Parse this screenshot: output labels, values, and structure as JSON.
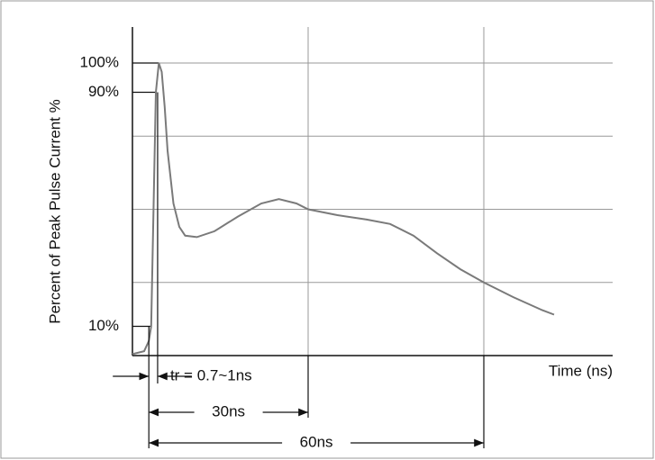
{
  "chart_data": {
    "type": "line",
    "ylabel": "Percent of Peak Pulse Current %",
    "xlabel": "Time (ns)",
    "xlim": [
      0,
      82
    ],
    "ylim": [
      0,
      100
    ],
    "yticks": [
      {
        "value": 10,
        "label": "10%"
      },
      {
        "value": 90,
        "label": "90%"
      },
      {
        "value": 100,
        "label": "100%"
      }
    ],
    "ygrid": [
      25,
      50,
      75,
      100
    ],
    "xgrid": [
      30,
      60
    ],
    "color": "#7a7a7a",
    "x": [
      0,
      2,
      2.8,
      3.2,
      3.6,
      4,
      4.5,
      5,
      5.5,
      6,
      7,
      8,
      9,
      11,
      14,
      18,
      22,
      25,
      28,
      30,
      35,
      40,
      44,
      48,
      52,
      56,
      60,
      65,
      70,
      72
    ],
    "values": [
      0.5,
      1.5,
      5,
      10,
      50,
      90,
      100,
      97,
      85,
      70,
      52,
      44,
      41,
      40.5,
      42.5,
      47.5,
      52,
      53.5,
      52,
      50,
      48,
      46.5,
      45,
      41,
      35,
      29.5,
      25,
      20,
      15.5,
      14
    ],
    "rise_time": {
      "label": "tr = 0.7~1ns",
      "from": 2.8,
      "to": 4.3
    },
    "spans": [
      {
        "label": "30ns",
        "from": 2.8,
        "to": 30
      },
      {
        "label": "60ns",
        "from": 2.8,
        "to": 60
      }
    ]
  }
}
